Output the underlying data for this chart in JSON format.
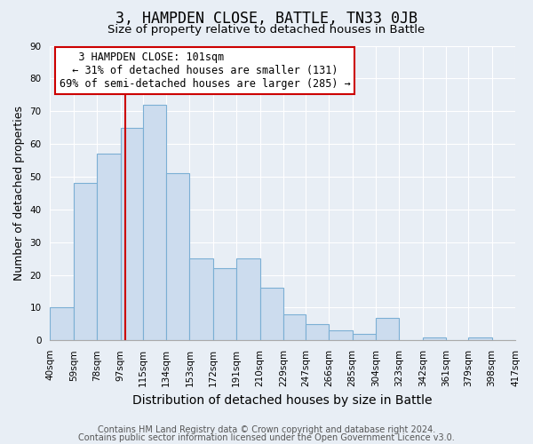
{
  "title": "3, HAMPDEN CLOSE, BATTLE, TN33 0JB",
  "subtitle": "Size of property relative to detached houses in Battle",
  "xlabel": "Distribution of detached houses by size in Battle",
  "ylabel": "Number of detached properties",
  "bar_heights": [
    10,
    48,
    57,
    65,
    72,
    51,
    25,
    22,
    25,
    16,
    8,
    5,
    3,
    2,
    7,
    0,
    1,
    0,
    1,
    0
  ],
  "bin_edges": [
    40,
    59,
    78,
    97,
    115,
    134,
    153,
    172,
    191,
    210,
    229,
    247,
    266,
    285,
    304,
    323,
    342,
    361,
    379,
    398,
    417
  ],
  "x_tick_labels": [
    "40sqm",
    "59sqm",
    "78sqm",
    "97sqm",
    "115sqm",
    "134sqm",
    "153sqm",
    "172sqm",
    "191sqm",
    "210sqm",
    "229sqm",
    "247sqm",
    "266sqm",
    "285sqm",
    "304sqm",
    "323sqm",
    "342sqm",
    "361sqm",
    "379sqm",
    "398sqm",
    "417sqm"
  ],
  "bar_facecolor": "#ccdcee",
  "bar_edgecolor": "#7bafd4",
  "vline_x": 101,
  "vline_color": "#cc0000",
  "ylim": [
    0,
    90
  ],
  "yticks": [
    0,
    10,
    20,
    30,
    40,
    50,
    60,
    70,
    80,
    90
  ],
  "annotation_title": "3 HAMPDEN CLOSE: 101sqm",
  "annotation_line1": "← 31% of detached houses are smaller (131)",
  "annotation_line2": "69% of semi-detached houses are larger (285) →",
  "annotation_box_color": "#ffffff",
  "annotation_box_edgecolor": "#cc0000",
  "footer_line1": "Contains HM Land Registry data © Crown copyright and database right 2024.",
  "footer_line2": "Contains public sector information licensed under the Open Government Licence v3.0.",
  "background_color": "#e8eef5",
  "plot_bg_color": "#e8eef5",
  "title_fontsize": 12,
  "subtitle_fontsize": 9.5,
  "xlabel_fontsize": 10,
  "ylabel_fontsize": 9,
  "tick_fontsize": 7.5,
  "footer_fontsize": 7,
  "annot_fontsize": 8.5
}
